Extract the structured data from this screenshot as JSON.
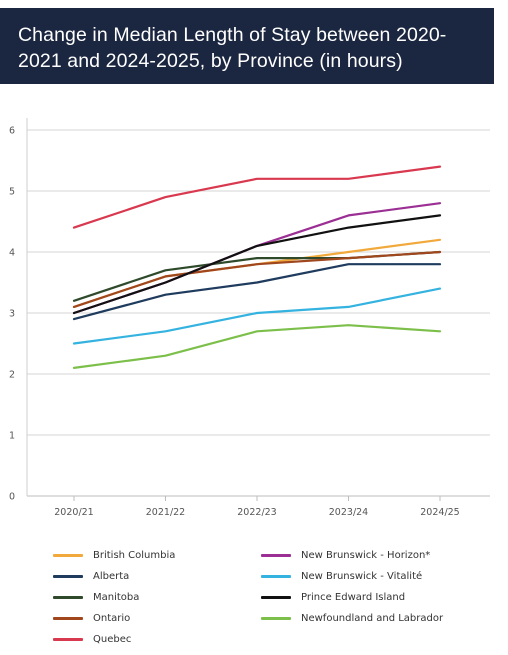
{
  "title": "Change in Median Length of Stay between 2020-2021 and 2024-2025, by Province (in hours)",
  "chart_data": {
    "type": "line",
    "title": "Change in Median Length of Stay between 2020-2021 and 2024-2025, by Province (in hours)",
    "xlabel": "",
    "ylabel": "",
    "x": [
      "2020/21",
      "2021/22",
      "2022/23",
      "2023/24",
      "2024/25"
    ],
    "ylim": [
      0,
      6
    ],
    "yticks": [
      0,
      1,
      2,
      3,
      4,
      5,
      6
    ],
    "grid": true,
    "legend_position": "bottom",
    "series": [
      {
        "name": "British Columbia",
        "color": "#f2a93b",
        "values": [
          3.1,
          3.6,
          3.8,
          4.0,
          4.2
        ]
      },
      {
        "name": "Alberta",
        "color": "#1f3b5e",
        "values": [
          2.9,
          3.3,
          3.5,
          3.8,
          3.8
        ]
      },
      {
        "name": "Manitoba",
        "color": "#2f4a2a",
        "values": [
          3.2,
          3.7,
          3.9,
          3.9,
          4.0
        ]
      },
      {
        "name": "Ontario",
        "color": "#a0471e",
        "values": [
          3.1,
          3.6,
          3.8,
          3.9,
          4.0
        ]
      },
      {
        "name": "Quebec",
        "color": "#d9394f",
        "values": [
          4.4,
          4.9,
          5.2,
          5.2,
          5.4
        ]
      },
      {
        "name": "New Brunswick - Horizon*",
        "color": "#9b2f94",
        "values": [
          3.0,
          3.5,
          4.1,
          4.6,
          4.8
        ]
      },
      {
        "name": "New Brunswick - Vitalité",
        "color": "#35b3e0",
        "values": [
          2.5,
          2.7,
          3.0,
          3.1,
          3.4
        ]
      },
      {
        "name": "Prince Edward Island",
        "color": "#111111",
        "values": [
          3.0,
          3.5,
          4.1,
          4.4,
          4.6
        ]
      },
      {
        "name": "Newfoundland and Labrador",
        "color": "#7cbf4a",
        "values": [
          2.1,
          2.3,
          2.7,
          2.8,
          2.7
        ]
      }
    ]
  }
}
